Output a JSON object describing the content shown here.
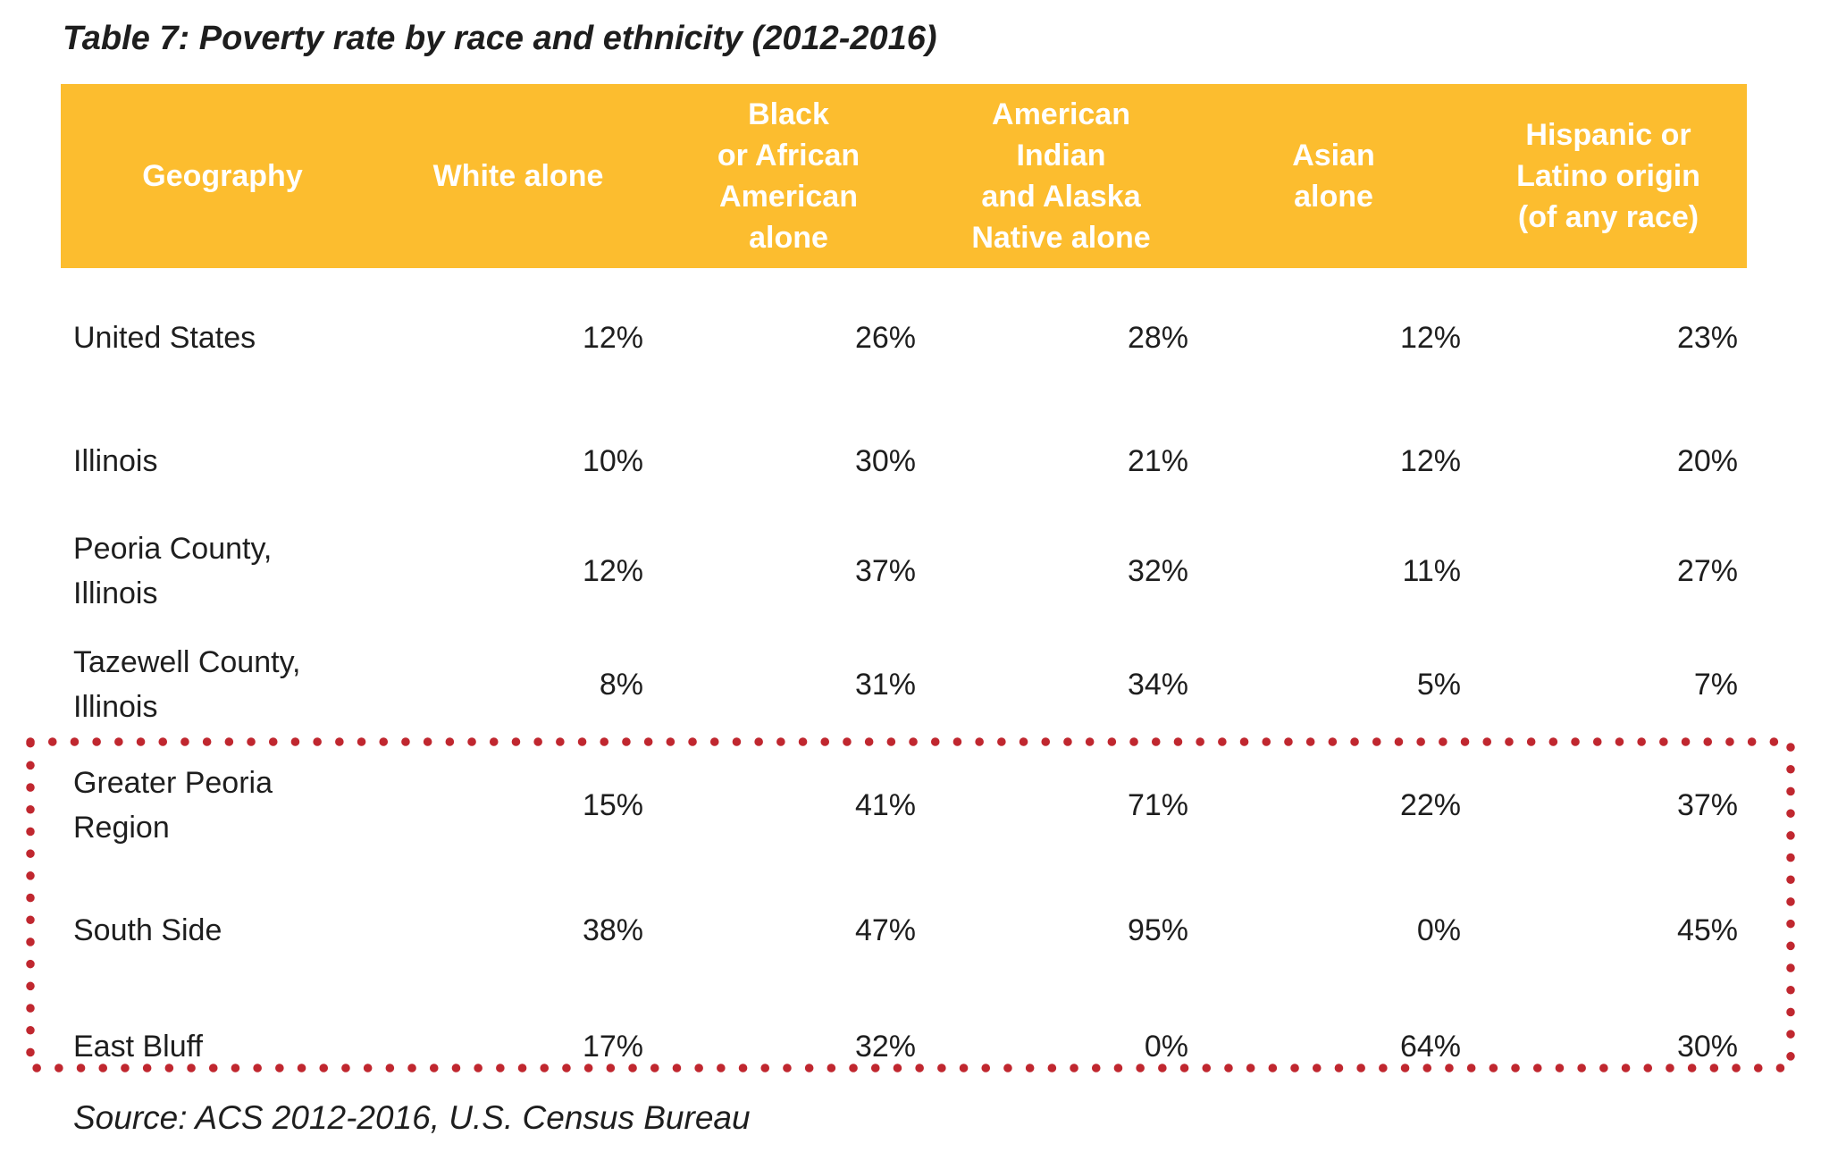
{
  "title": "Table 7: Poverty rate by race and ethnicity (2012-2016)",
  "source": "Source: ACS 2012-2016, U.S. Census Bureau",
  "colors": {
    "header_bg": "#FCBD2F",
    "header_text": "#FFFFFF",
    "body_text": "#1E1E1E",
    "highlight_border": "#C0272F",
    "page_bg": "#FFFFFF"
  },
  "table": {
    "columns": [
      "Geography",
      "White alone",
      "Black\nor African\nAmerican\nalone",
      "American\nIndian\nand Alaska\nNative alone",
      "Asian\nalone",
      "Hispanic or\nLatino origin\n(of any race)"
    ],
    "rows": [
      {
        "geography": "United States",
        "values": [
          "12%",
          "26%",
          "28%",
          "12%",
          "23%"
        ],
        "highlighted": false
      },
      {
        "geography": "Illinois",
        "values": [
          "10%",
          "30%",
          "21%",
          "12%",
          "20%"
        ],
        "highlighted": false
      },
      {
        "geography": "Peoria County,\nIllinois",
        "values": [
          "12%",
          "37%",
          "32%",
          "11%",
          "27%"
        ],
        "highlighted": false
      },
      {
        "geography": "Tazewell County,\nIllinois",
        "values": [
          "8%",
          "31%",
          "34%",
          "5%",
          "7%"
        ],
        "highlighted": false
      },
      {
        "geography": "Greater Peoria\nRegion",
        "values": [
          "15%",
          "41%",
          "71%",
          "22%",
          "37%"
        ],
        "highlighted": true
      },
      {
        "geography": "South Side",
        "values": [
          "38%",
          "47%",
          "95%",
          "0%",
          "45%"
        ],
        "highlighted": true
      },
      {
        "geography": "East Bluff",
        "values": [
          "17%",
          "32%",
          "0%",
          "64%",
          "30%"
        ],
        "highlighted": true
      }
    ]
  },
  "chart_data": {
    "type": "table",
    "title": "Table 7: Poverty rate by race and ethnicity (2012-2016)",
    "columns": [
      "Geography",
      "White alone",
      "Black or African American alone",
      "American Indian and Alaska Native alone",
      "Asian alone",
      "Hispanic or Latino origin (of any race)"
    ],
    "rows": [
      {
        "geography": "United States",
        "values_pct": [
          12,
          26,
          28,
          12,
          23
        ]
      },
      {
        "geography": "Illinois",
        "values_pct": [
          10,
          30,
          21,
          12,
          20
        ]
      },
      {
        "geography": "Peoria County, Illinois",
        "values_pct": [
          12,
          37,
          32,
          11,
          27
        ]
      },
      {
        "geography": "Tazewell County, Illinois",
        "values_pct": [
          8,
          31,
          34,
          5,
          7
        ]
      },
      {
        "geography": "Greater Peoria Region",
        "values_pct": [
          15,
          41,
          71,
          22,
          37
        ]
      },
      {
        "geography": "South Side",
        "values_pct": [
          38,
          47,
          95,
          0,
          45
        ]
      },
      {
        "geography": "East Bluff",
        "values_pct": [
          17,
          32,
          0,
          64,
          30
        ]
      }
    ],
    "highlighted_rows": [
      "Greater Peoria Region",
      "South Side",
      "East Bluff"
    ],
    "source": "Source: ACS 2012-2016, U.S. Census Bureau"
  }
}
